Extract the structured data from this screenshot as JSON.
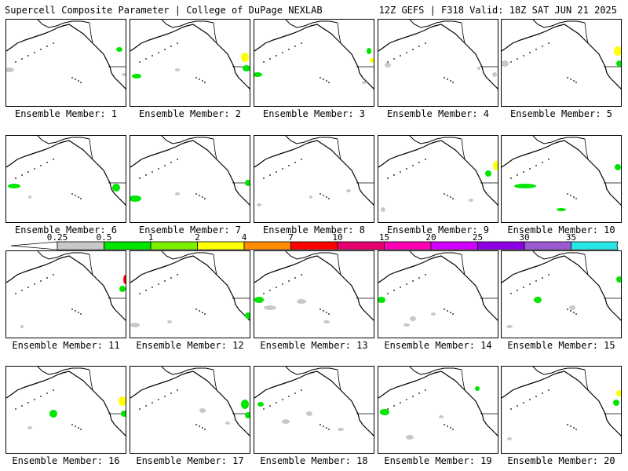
{
  "header": {
    "title": "Supercell Composite Parameter | College of DuPage NEXLAB",
    "run_info": "12Z GEFS | F318 Valid: 18Z SAT JUN 21 2025"
  },
  "member_label_prefix": "Ensemble Member: ",
  "members": [
    {
      "label": "Ensemble Member: 1"
    },
    {
      "label": "Ensemble Member: 2"
    },
    {
      "label": "Ensemble Member: 3"
    },
    {
      "label": "Ensemble Member: 4"
    },
    {
      "label": "Ensemble Member: 5"
    },
    {
      "label": "Ensemble Member: 6"
    },
    {
      "label": "Ensemble Member: 7"
    },
    {
      "label": "Ensemble Member: 8"
    },
    {
      "label": "Ensemble Member: 9"
    },
    {
      "label": "Ensemble Member: 10"
    },
    {
      "label": "Ensemble Member: 11"
    },
    {
      "label": "Ensemble Member: 12"
    },
    {
      "label": "Ensemble Member: 13"
    },
    {
      "label": "Ensemble Member: 14"
    },
    {
      "label": "Ensemble Member: 15"
    },
    {
      "label": "Ensemble Member: 16"
    },
    {
      "label": "Ensemble Member: 17"
    },
    {
      "label": "Ensemble Member: 18"
    },
    {
      "label": "Ensemble Member: 19"
    },
    {
      "label": "Ensemble Member: 20"
    }
  ],
  "colorbar": {
    "ticks": [
      "0.25",
      "0.5",
      "1",
      "2",
      "4",
      "7",
      "10",
      "15",
      "20",
      "25",
      "30",
      "35"
    ],
    "colors": [
      "#c8c8c8",
      "#00e600",
      "#7df000",
      "#ffff00",
      "#ff8c00",
      "#ff0000",
      "#e6006e",
      "#ff00b4",
      "#d200ff",
      "#8c00e6",
      "#9b5ad2",
      "#28e6e6"
    ]
  },
  "map_colors": {
    "coast": "#000000",
    "border": "#000000",
    "low": "#c8c8c8",
    "mid": "#00e600",
    "high": "#ffff00",
    "top": "#ff0000"
  }
}
